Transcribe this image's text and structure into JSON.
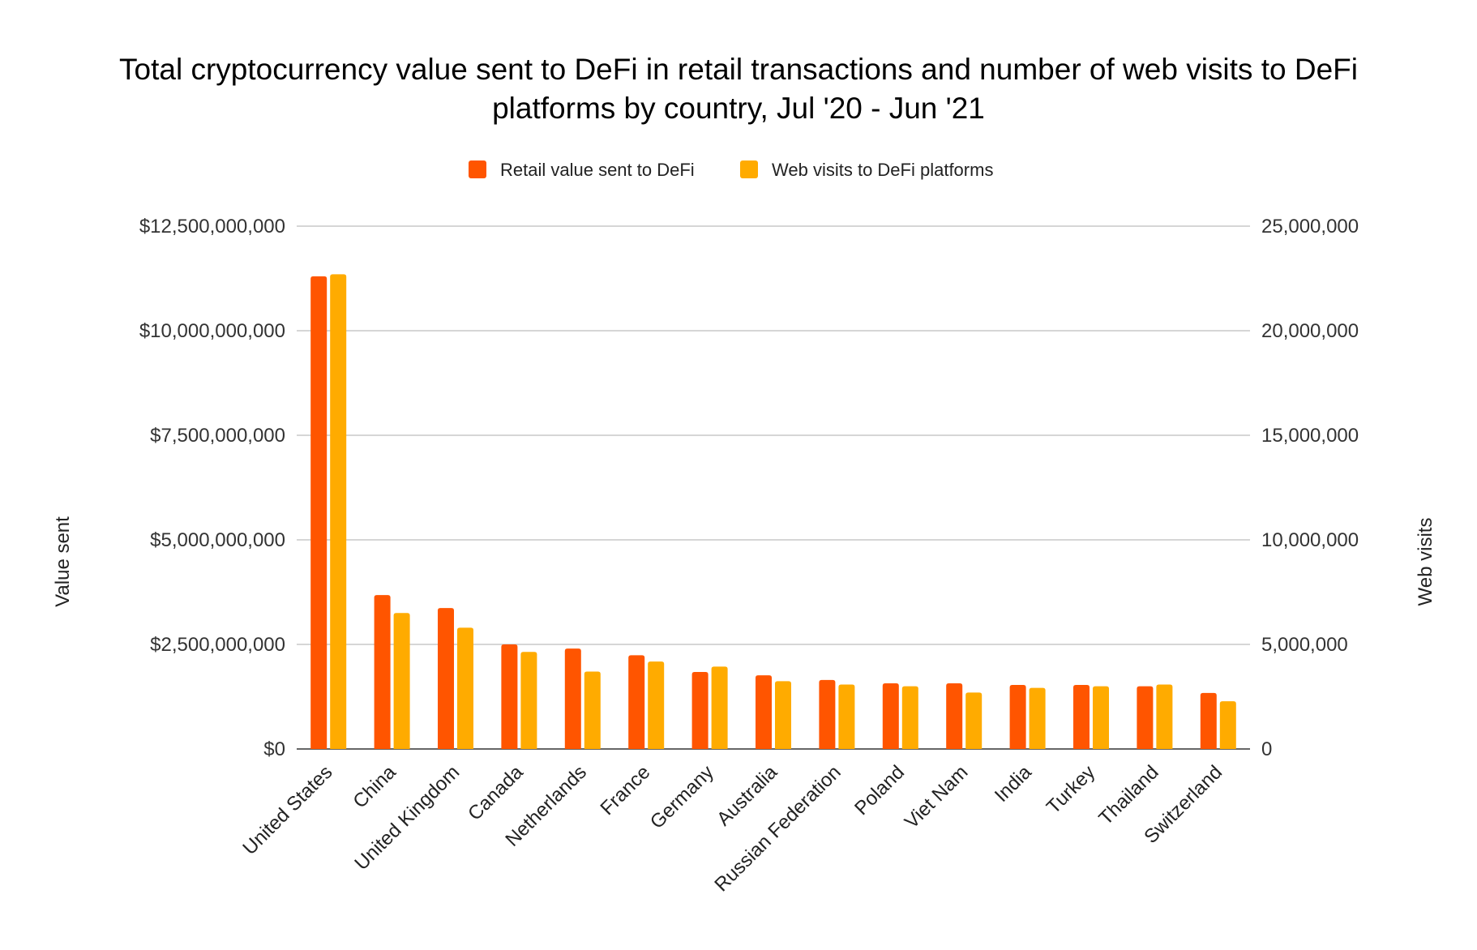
{
  "chart_data": {
    "type": "bar",
    "title_lines": [
      "Total cryptocurrency value sent to DeFi in retail transactions and number of web visits to DeFi",
      "platforms by country, Jul '20 - Jun '21"
    ],
    "categories": [
      "United States",
      "China",
      "United Kingdom",
      "Canada",
      "Netherlands",
      "France",
      "Germany",
      "Australia",
      "Russian Federation",
      "Poland",
      "Viet Nam",
      "India",
      "Turkey",
      "Thailand",
      "Switzerland"
    ],
    "series": [
      {
        "name": "Retail value sent to DeFi",
        "axis": "left",
        "color": "#ff5500",
        "values": [
          11300000000,
          3680000000,
          3370000000,
          2500000000,
          2400000000,
          2240000000,
          1840000000,
          1760000000,
          1650000000,
          1570000000,
          1570000000,
          1530000000,
          1530000000,
          1500000000,
          1340000000
        ]
      },
      {
        "name": "Web visits to DeFi platforms",
        "axis": "right",
        "color": "#ffab00",
        "values": [
          22700000,
          6500000,
          5800000,
          4640000,
          3700000,
          4180000,
          3940000,
          3240000,
          3080000,
          3000000,
          2700000,
          2920000,
          3000000,
          3080000,
          2280000
        ]
      }
    ],
    "ylabel_left": "Value sent",
    "ylabel_right": "Web visits",
    "ylim_left": [
      0,
      12500000000
    ],
    "ylim_right": [
      0,
      25000000
    ],
    "yticks_left": [
      "$0",
      "$2,500,000,000",
      "$5,000,000,000",
      "$7,500,000,000",
      "$10,000,000,000",
      "$12,500,000,000"
    ],
    "yticks_right": [
      "0",
      "5,000,000",
      "10,000,000",
      "15,000,000",
      "20,000,000",
      "25,000,000"
    ],
    "legend_position": "top",
    "grid": true
  }
}
